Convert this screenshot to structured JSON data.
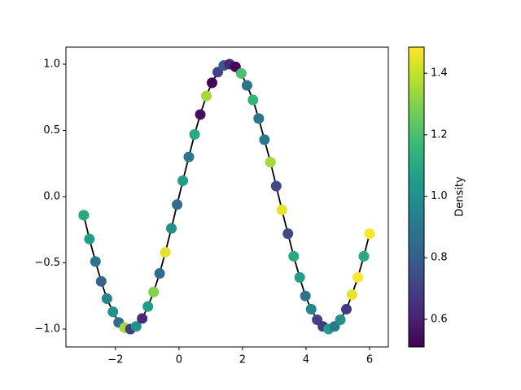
{
  "chart_data": {
    "type": "line",
    "x": [
      -3.0,
      -2.82,
      -2.63,
      -2.45,
      -2.27,
      -2.08,
      -1.9,
      -1.71,
      -1.53,
      -1.35,
      -1.16,
      -0.98,
      -0.8,
      -0.61,
      -0.43,
      -0.24,
      -0.06,
      0.12,
      0.31,
      0.49,
      0.67,
      0.86,
      1.04,
      1.22,
      1.41,
      1.59,
      1.78,
      1.96,
      2.14,
      2.33,
      2.51,
      2.69,
      2.88,
      3.06,
      3.24,
      3.43,
      3.61,
      3.8,
      3.98,
      4.16,
      4.35,
      4.53,
      4.71,
      4.9,
      5.08,
      5.27,
      5.45,
      5.63,
      5.82,
      6.0
    ],
    "y": [
      -0.14,
      -0.32,
      -0.49,
      -0.64,
      -0.77,
      -0.87,
      -0.95,
      -0.99,
      -1.0,
      -0.98,
      -0.92,
      -0.83,
      -0.72,
      -0.58,
      -0.42,
      -0.24,
      -0.06,
      0.12,
      0.3,
      0.47,
      0.62,
      0.76,
      0.86,
      0.94,
      0.99,
      1.0,
      0.98,
      0.93,
      0.84,
      0.73,
      0.59,
      0.43,
      0.26,
      0.08,
      -0.1,
      -0.28,
      -0.45,
      -0.61,
      -0.75,
      -0.85,
      -0.93,
      -0.98,
      -1.0,
      -0.98,
      -0.93,
      -0.85,
      -0.74,
      -0.61,
      -0.45,
      -0.28
    ],
    "density": [
      1.1,
      1.05,
      0.88,
      0.82,
      0.95,
      1.0,
      0.85,
      1.35,
      0.68,
      1.0,
      0.62,
      1.05,
      1.3,
      0.85,
      1.45,
      1.0,
      0.85,
      1.05,
      0.9,
      1.1,
      0.55,
      1.35,
      0.52,
      0.7,
      0.78,
      0.62,
      0.52,
      1.2,
      0.88,
      1.15,
      0.88,
      0.9,
      1.35,
      0.72,
      1.45,
      0.72,
      1.1,
      1.05,
      0.88,
      0.95,
      0.7,
      0.68,
      1.05,
      0.9,
      1.0,
      0.68,
      1.45,
      1.48,
      1.1,
      1.48
    ],
    "line_color": "#000000",
    "colormap": "viridis",
    "xlim": [
      -3.56,
      6.59
    ],
    "ylim": [
      -1.135,
      1.129
    ],
    "xticks": [
      {
        "value": -2,
        "label": "−2"
      },
      0,
      2,
      4,
      6
    ],
    "yticks": [
      {
        "value": -1,
        "label": "−1.0"
      },
      {
        "value": -0.5,
        "label": "−0.5"
      },
      {
        "value": 0,
        "label": "0.0"
      },
      {
        "value": 0.5,
        "label": "0.5"
      },
      {
        "value": 1,
        "label": "1.0"
      }
    ],
    "colorbar": {
      "label": "Density",
      "lim": [
        0.51,
        1.485
      ],
      "ticks": [
        0.6,
        0.8,
        {
          "value": 1,
          "label": "1.0"
        },
        1.2,
        1.4
      ]
    }
  }
}
